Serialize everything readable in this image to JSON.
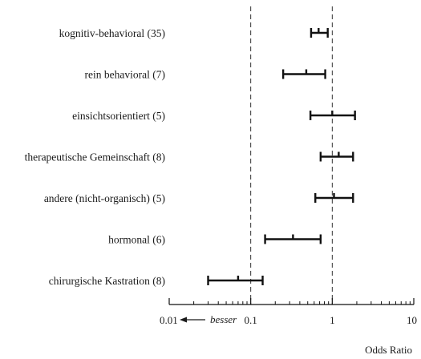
{
  "chart_data": {
    "type": "forest",
    "x_scale": "log",
    "xlim": [
      0.01,
      10
    ],
    "x_ticks": [
      {
        "value": 0.01,
        "label": "0.01"
      },
      {
        "value": 0.1,
        "label": "0.1"
      },
      {
        "value": 1,
        "label": "1"
      },
      {
        "value": 10,
        "label": "10"
      }
    ],
    "reference_lines": [
      0.1,
      1
    ],
    "xlabel": "Odds Ratio",
    "direction_label": "besser",
    "direction": "left",
    "grid": false,
    "rows": [
      {
        "label": "kognitiv-behavioral (35)",
        "estimate": 0.68,
        "lower": 0.55,
        "upper": 0.88
      },
      {
        "label": "rein behavioral (7)",
        "estimate": 0.48,
        "lower": 0.25,
        "upper": 0.82
      },
      {
        "label": "einsichtsorientiert (5)",
        "estimate": 1.0,
        "lower": 0.54,
        "upper": 1.9
      },
      {
        "label": "therapeutische Gemeinschaft (8)",
        "estimate": 1.2,
        "lower": 0.72,
        "upper": 1.8
      },
      {
        "label": "andere (nicht-organisch) (5)",
        "estimate": 1.05,
        "lower": 0.62,
        "upper": 1.8
      },
      {
        "label": "hormonal (6)",
        "estimate": 0.33,
        "lower": 0.15,
        "upper": 0.72
      },
      {
        "label": "chirurgische Kastration (8)",
        "estimate": 0.07,
        "lower": 0.03,
        "upper": 0.14
      }
    ]
  }
}
